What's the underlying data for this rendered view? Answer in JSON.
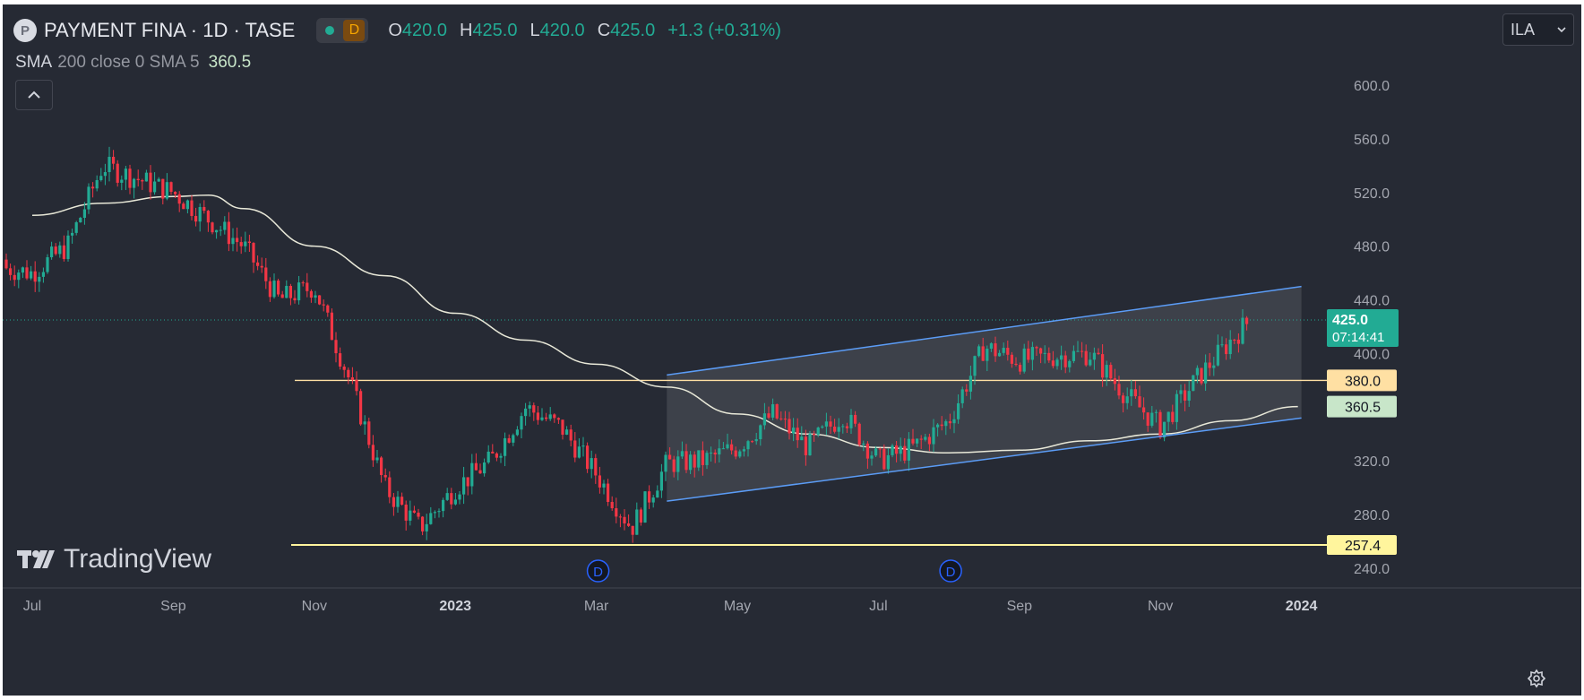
{
  "header": {
    "logo_letter": "P",
    "symbol_title": "PAYMENT FINA · 1D · TASE",
    "badge_label": "D",
    "ohlc": [
      {
        "key": "O",
        "value": "420.0"
      },
      {
        "key": "H",
        "value": "425.0"
      },
      {
        "key": "L",
        "value": "420.0"
      },
      {
        "key": "C",
        "value": "425.0"
      }
    ],
    "change": "+1.3 (+0.31%)",
    "currency": "ILA"
  },
  "indicator": {
    "name": "SMA",
    "params": "200 close 0 SMA 5",
    "value": "360.5"
  },
  "watermark": "TradingView",
  "colors": {
    "background": "#262A34",
    "up": "#22AB94",
    "down": "#F23645",
    "channel": "#5B9CF6",
    "sma": "#E8E8D8",
    "support": "#FFF59D",
    "resistance": "#FFE0A3"
  },
  "chart_data": {
    "type": "candlestick",
    "y_axis": {
      "range": [
        226,
        616
      ],
      "ticks": [
        "600.0",
        "560.0",
        "520.0",
        "480.0",
        "440.0",
        "400.0",
        "360.0",
        "320.0",
        "280.0",
        "240.0"
      ]
    },
    "x_axis": {
      "ticks": [
        "Jul",
        "Sep",
        "Nov",
        "2023",
        "Mar",
        "May",
        "Jul",
        "Sep",
        "Nov",
        "2024"
      ],
      "bold_ticks": [
        "2023",
        "2024"
      ]
    },
    "last_price": {
      "value": 425.0,
      "label": "425.0",
      "countdown": "07:14:41"
    },
    "sma_200": {
      "label": "360.5",
      "points": [
        [
          "Jul 2022",
          503
        ],
        [
          "Aug 2022",
          512
        ],
        [
          "Sep 2022",
          517
        ],
        [
          "mid Sep 2022",
          518
        ],
        [
          "Oct 2022",
          508
        ],
        [
          "Nov 2022",
          480
        ],
        [
          "Dec 2022",
          458
        ],
        [
          "Jan 2023",
          430
        ],
        [
          "Feb 2023",
          410
        ],
        [
          "Mar 2023",
          392
        ],
        [
          "Apr 2023",
          375
        ],
        [
          "May 2023",
          355
        ],
        [
          "Jun 2023",
          340
        ],
        [
          "Jul 2023",
          330
        ],
        [
          "Aug 2023",
          326
        ],
        [
          "Sep 2023",
          328
        ],
        [
          "Oct 2023",
          335
        ],
        [
          "Nov 2023",
          340
        ],
        [
          "Dec 2023",
          350
        ],
        [
          "end Dec 2023",
          360.5
        ]
      ]
    },
    "horizontal_levels": [
      {
        "label": "380.0",
        "value": 380.0
      },
      {
        "label": "257.4",
        "value": 257.4
      }
    ],
    "channel": {
      "upper": [
        [
          "Apr 2023",
          384
        ],
        [
          "Jan 2024",
          450
        ]
      ],
      "lower": [
        [
          "Apr 2023",
          290
        ],
        [
          "Jan 2024",
          352
        ]
      ]
    },
    "events": [
      {
        "label": "D",
        "date": "Mar 2023"
      },
      {
        "label": "D",
        "date": "Aug 2023"
      }
    ],
    "price_path": [
      [
        "Jun 2022",
        470
      ],
      [
        "Jul 2022",
        460
      ],
      [
        "mid Jul 2022",
        480
      ],
      [
        "Aug 2022",
        540
      ],
      [
        "mid Aug 2022",
        530
      ],
      [
        "Sep 2022",
        520
      ],
      [
        "mid Sep 2022",
        500
      ],
      [
        "Oct 2022",
        480
      ],
      [
        "mid Oct 2022",
        440
      ],
      [
        "Nov 2022",
        450
      ],
      [
        "mid Nov 2022",
        380
      ],
      [
        "Dec 2022",
        300
      ],
      [
        "mid Dec 2022",
        270
      ],
      [
        "Jan 2023",
        300
      ],
      [
        "mid Jan 2023",
        320
      ],
      [
        "Feb 2023",
        360
      ],
      [
        "mid Feb 2023",
        345
      ],
      [
        "Mar 2023",
        310
      ],
      [
        "mid Mar 2023",
        270
      ],
      [
        "Apr 2023",
        318
      ],
      [
        "mid Apr 2023",
        320
      ],
      [
        "May 2023",
        330
      ],
      [
        "mid May 2023",
        355
      ],
      [
        "Jun 2023",
        330
      ],
      [
        "mid Jun 2023",
        355
      ],
      [
        "Jul 2023",
        320
      ],
      [
        "mid Jul 2023",
        330
      ],
      [
        "Aug 2023",
        350
      ],
      [
        "mid Aug 2023",
        405
      ],
      [
        "Sep 2023",
        395
      ],
      [
        "mid Sep 2023",
        398
      ],
      [
        "Oct 2023",
        400
      ],
      [
        "mid Oct 2023",
        370
      ],
      [
        "Nov 2023",
        345
      ],
      [
        "mid Nov 2023",
        380
      ],
      [
        "Dec 2023",
        410
      ],
      [
        "mid Dec 2023",
        438
      ],
      [
        "end Dec 2023",
        425
      ]
    ]
  }
}
